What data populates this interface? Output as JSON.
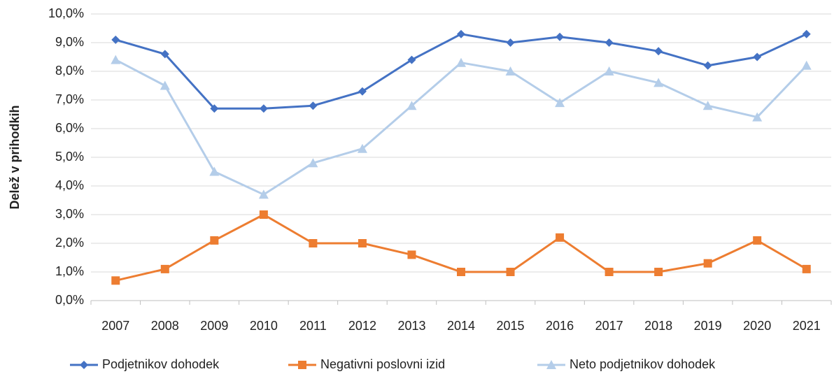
{
  "chart_data": {
    "type": "line",
    "y_label": "Delež v prihodkih",
    "categories": [
      "2007",
      "2008",
      "2009",
      "2010",
      "2011",
      "2012",
      "2013",
      "2014",
      "2015",
      "2016",
      "2017",
      "2018",
      "2019",
      "2020",
      "2021"
    ],
    "series": [
      {
        "name": "Podjetnikov dohodek",
        "color": "#4472c4",
        "marker": "diamond",
        "values": [
          9.1,
          8.6,
          6.7,
          6.7,
          6.8,
          7.3,
          8.4,
          9.3,
          9.0,
          9.2,
          9.0,
          8.7,
          8.2,
          8.5,
          9.3
        ]
      },
      {
        "name": "Negativni poslovni izid",
        "color": "#ed7d31",
        "marker": "square",
        "values": [
          0.7,
          1.1,
          2.1,
          3.0,
          2.0,
          2.0,
          1.6,
          1.0,
          1.0,
          2.2,
          1.0,
          1.0,
          1.3,
          2.1,
          1.1
        ]
      },
      {
        "name": "Neto podjetnikov dohodek",
        "color": "#b4cde9",
        "marker": "triangle",
        "values": [
          8.4,
          7.5,
          4.5,
          3.7,
          4.8,
          5.3,
          6.8,
          8.3,
          8.0,
          6.9,
          8.0,
          7.6,
          6.8,
          6.4,
          8.2
        ]
      }
    ],
    "ylim": [
      0,
      10
    ],
    "yticks": [
      {
        "value": 0,
        "label": "0,0%"
      },
      {
        "value": 1,
        "label": "1,0%"
      },
      {
        "value": 2,
        "label": "2,0%"
      },
      {
        "value": 3,
        "label": "3,0%"
      },
      {
        "value": 4,
        "label": "4,0%"
      },
      {
        "value": 5,
        "label": "5,0%"
      },
      {
        "value": 6,
        "label": "6,0%"
      },
      {
        "value": 7,
        "label": "7,0%"
      },
      {
        "value": 8,
        "label": "8,0%"
      },
      {
        "value": 9,
        "label": "9,0%"
      },
      {
        "value": 10,
        "label": "10,0%"
      }
    ],
    "grid": true,
    "legend": "bottom"
  }
}
